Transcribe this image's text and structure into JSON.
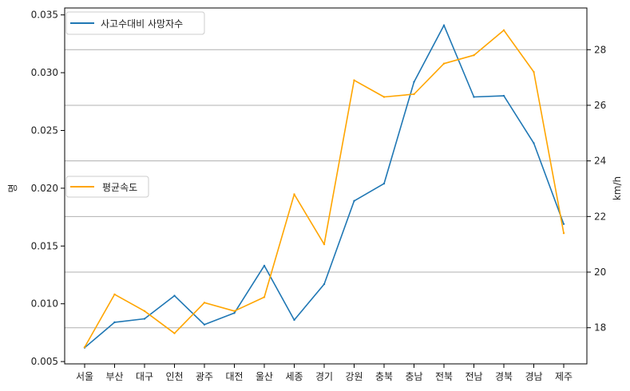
{
  "chart_data": {
    "type": "line",
    "categories": [
      "서울",
      "부산",
      "대구",
      "인천",
      "광주",
      "대전",
      "울산",
      "세종",
      "경기",
      "강원",
      "충북",
      "충남",
      "전북",
      "전남",
      "경북",
      "경남",
      "제주"
    ],
    "series": [
      {
        "name": "사고수대비 사망자수",
        "axis": "left",
        "color": "#1f77b4",
        "values": [
          0.0062,
          0.0084,
          0.0087,
          0.0107,
          0.0082,
          0.0092,
          0.0133,
          0.0086,
          0.0117,
          0.0189,
          0.0204,
          0.0292,
          0.0341,
          0.0279,
          0.028,
          0.0239,
          0.0169
        ]
      },
      {
        "name": "평균속도",
        "axis": "right",
        "color": "#ffa500",
        "values": [
          17.3,
          19.2,
          18.6,
          17.8,
          18.9,
          18.6,
          19.1,
          22.8,
          21.0,
          26.9,
          26.3,
          26.4,
          27.5,
          27.8,
          28.7,
          27.2,
          21.4
        ]
      }
    ],
    "ylabel": "명",
    "y2label": "km/h",
    "ylim": [
      0.0048,
      0.0356
    ],
    "y2lim": [
      16.7,
      29.5
    ],
    "yticks": [
      0.005,
      0.01,
      0.015,
      0.02,
      0.025,
      0.03,
      0.035
    ],
    "yticklabels": [
      "0.005",
      "0.010",
      "0.015",
      "0.020",
      "0.025",
      "0.030",
      "0.035"
    ],
    "y2ticks": [
      18,
      20,
      22,
      24,
      26,
      28
    ],
    "y2ticklabels": [
      "18",
      "20",
      "22",
      "24",
      "26",
      "28"
    ],
    "grid": "right-axis horizontal",
    "legend": [
      {
        "label": "사고수대비 사망자수",
        "placement": "top-left"
      },
      {
        "label": "평균속도",
        "placement": "center-left"
      }
    ]
  }
}
